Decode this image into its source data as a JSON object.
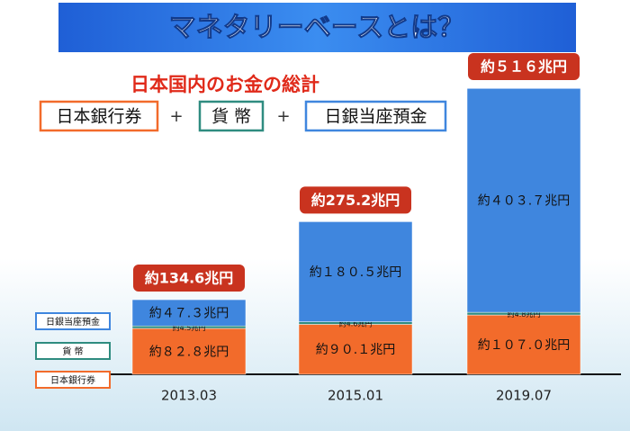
{
  "chart_data": {
    "type": "stacked_bar",
    "title": "マネタリーベースとは？",
    "subtitle": "日本国内のお金の総計",
    "operator": "+",
    "categories": [
      "2013.03",
      "2015.01",
      "2019.07"
    ],
    "series": [
      {
        "name": "日本銀行券",
        "color": "#f26b2b",
        "values": [
          82.8,
          90.1,
          107
        ],
        "value_labels": [
          "約８２.８兆円",
          "約９０.１兆円",
          "約１０７.０兆円"
        ]
      },
      {
        "name": "貨 幣",
        "color": "#2f8c80",
        "values": [
          4.5,
          4.6,
          4.8
        ],
        "value_labels": [
          "約4.5兆円",
          "約4.6兆円",
          "約4.8兆円"
        ]
      },
      {
        "name": "日銀当座預金",
        "color": "#3f86de",
        "values": [
          47.3,
          180.5,
          403.7
        ],
        "value_labels": [
          "約４７.３兆円",
          "約１８０.５兆円",
          "約４０３.７兆円"
        ]
      }
    ],
    "totals": [
      134.6,
      275.2,
      516
    ],
    "total_labels": [
      "約134.6兆円",
      "約275.2兆円",
      "約５１６兆円"
    ]
  }
}
